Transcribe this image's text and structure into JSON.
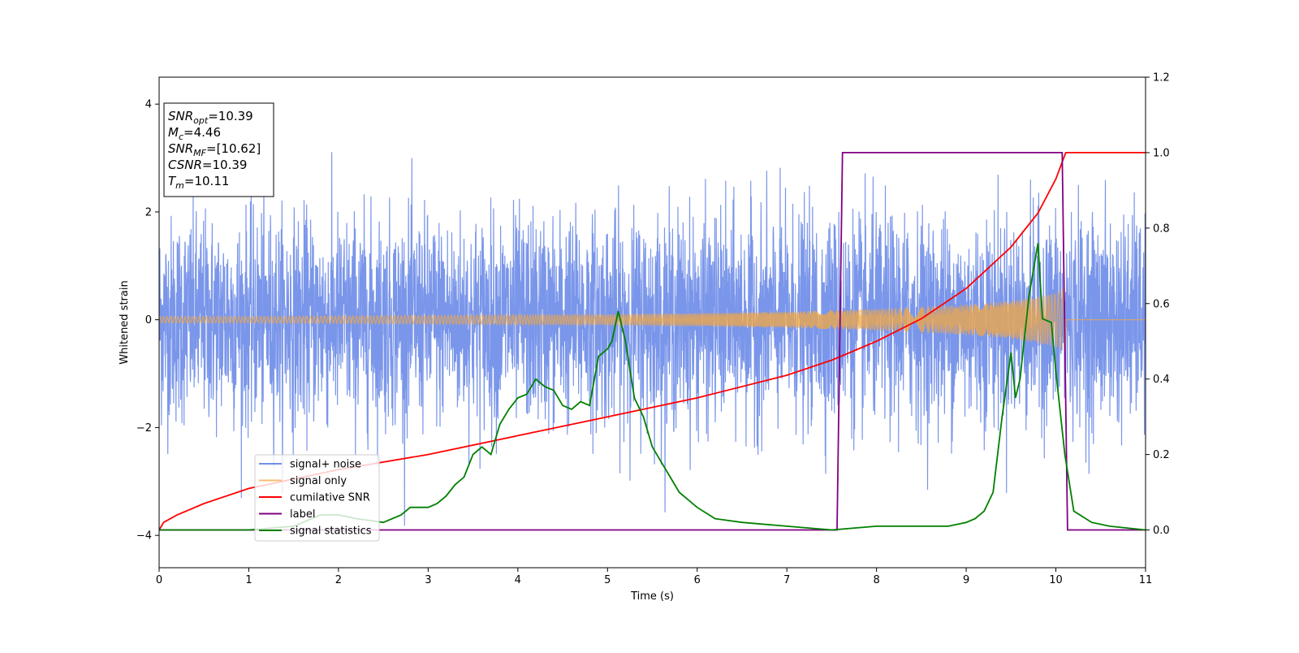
{
  "chart_data": {
    "type": "line",
    "xlabel": "Time (s)",
    "ylabel": "Whitened strain",
    "xlim": [
      0,
      11
    ],
    "ylim": [
      -4.6,
      4.5
    ],
    "y2lim": [
      -0.1,
      1.2
    ],
    "x_ticks": [
      0,
      1,
      2,
      3,
      4,
      5,
      6,
      7,
      8,
      9,
      10,
      11
    ],
    "y_ticks": [
      -4,
      -2,
      0,
      2,
      4
    ],
    "y2_ticks": [
      "0.0",
      "0.2",
      "0.4",
      "0.6",
      "0.8",
      "1.0",
      "1.2"
    ],
    "y2_tick_values": [
      0.0,
      0.2,
      0.4,
      0.6,
      0.8,
      1.0,
      1.2
    ],
    "annotation": [
      {
        "base": "SNR",
        "sub": "opt",
        "value": "=10.39"
      },
      {
        "base": "M",
        "sub": "c",
        "value": "=4.46"
      },
      {
        "base": "SNR",
        "sub": "MF",
        "value": "=[10.62]"
      },
      {
        "base": "CSNR",
        "sub": "",
        "value": "=10.39"
      },
      {
        "base": "T",
        "sub": "m",
        "value": "=10.11"
      }
    ],
    "legend_position": "lower-left",
    "series": [
      {
        "name": "signal+ noise",
        "axis": "left",
        "color": "#4169e1",
        "kind": "noise",
        "std": 0.95,
        "approx_range": [
          -4.15,
          4.1
        ]
      },
      {
        "name": "signal only",
        "axis": "left",
        "color": "#f4a742",
        "kind": "chirp",
        "amplitude_x": [
          0,
          1,
          2,
          3,
          4,
          5,
          6,
          7,
          8,
          9,
          9.5,
          10,
          10.11
        ],
        "amplitude_y": [
          0.06,
          0.06,
          0.07,
          0.08,
          0.09,
          0.1,
          0.12,
          0.15,
          0.2,
          0.28,
          0.35,
          0.5,
          0.62
        ],
        "end_x": 10.11
      },
      {
        "name": "cumilative SNR",
        "axis": "right",
        "color": "#ff0000",
        "x": [
          0,
          0.05,
          0.2,
          0.5,
          1,
          2,
          3,
          4,
          5,
          6,
          7,
          7.5,
          8,
          8.5,
          9,
          9.5,
          9.8,
          10,
          10.11,
          11
        ],
        "y": [
          0.0,
          0.02,
          0.04,
          0.07,
          0.11,
          0.16,
          0.2,
          0.25,
          0.3,
          0.35,
          0.41,
          0.45,
          0.5,
          0.56,
          0.64,
          0.75,
          0.84,
          0.93,
          1.0,
          1.0
        ]
      },
      {
        "name": "label",
        "axis": "right",
        "color": "#800080",
        "x": [
          0,
          7.56,
          7.62,
          10.07,
          10.13,
          11
        ],
        "y": [
          0,
          0,
          1,
          1,
          0,
          0
        ]
      },
      {
        "name": "signal statistics",
        "axis": "right",
        "color": "#008000",
        "x": [
          0,
          0.5,
          1,
          1.5,
          1.8,
          2,
          2.2,
          2.5,
          2.7,
          2.8,
          3,
          3.1,
          3.2,
          3.3,
          3.4,
          3.5,
          3.6,
          3.7,
          3.8,
          3.9,
          4,
          4.1,
          4.2,
          4.3,
          4.4,
          4.5,
          4.6,
          4.7,
          4.8,
          4.9,
          5,
          5.05,
          5.12,
          5.2,
          5.3,
          5.4,
          5.5,
          5.6,
          5.7,
          5.8,
          5.9,
          6,
          6.2,
          6.5,
          7,
          7.5,
          8,
          8.5,
          8.8,
          9,
          9.1,
          9.2,
          9.3,
          9.4,
          9.5,
          9.55,
          9.6,
          9.7,
          9.8,
          9.85,
          9.95,
          10,
          10.1,
          10.2,
          10.4,
          10.6,
          11
        ],
        "y": [
          0,
          0,
          0,
          0.01,
          0.04,
          0.04,
          0.03,
          0.02,
          0.04,
          0.06,
          0.06,
          0.07,
          0.09,
          0.12,
          0.14,
          0.2,
          0.22,
          0.2,
          0.28,
          0.32,
          0.35,
          0.36,
          0.4,
          0.38,
          0.37,
          0.33,
          0.32,
          0.34,
          0.33,
          0.46,
          0.48,
          0.5,
          0.58,
          0.5,
          0.35,
          0.3,
          0.22,
          0.18,
          0.14,
          0.1,
          0.08,
          0.06,
          0.03,
          0.02,
          0.01,
          0.0,
          0.01,
          0.01,
          0.01,
          0.02,
          0.03,
          0.05,
          0.1,
          0.3,
          0.47,
          0.35,
          0.4,
          0.62,
          0.76,
          0.56,
          0.55,
          0.42,
          0.2,
          0.05,
          0.02,
          0.01,
          0.0
        ]
      }
    ]
  }
}
